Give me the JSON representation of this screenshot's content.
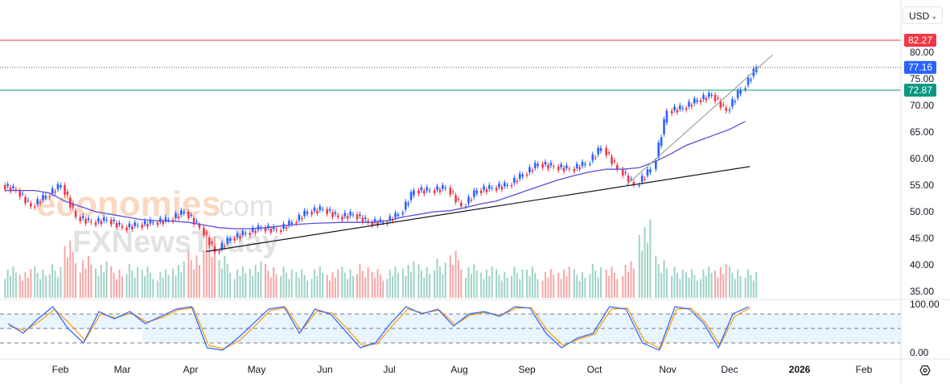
{
  "currency_selector": {
    "value": "USD",
    "icon": "chevron-down-icon"
  },
  "settings_icon": "gear-hexagon-icon",
  "watermark": [
    "economies.com",
    "FXNewsToday"
  ],
  "colors": {
    "up": "#2962ff",
    "down": "#f23645",
    "vol_up": "#9fd3c7",
    "vol_down": "#f5a6a6",
    "ma": "#5b4fd6",
    "stoch_k": "#2962ff",
    "stoch_d": "#ff9800",
    "resistance": "#f23645",
    "support": "#089981",
    "last": "#2962ff"
  },
  "chart_data": [
    {
      "type": "candlestick",
      "ylim": [
        35,
        82
      ],
      "y_ticks": [
        "80.00",
        "75.00",
        "70.00",
        "65.00",
        "60.00",
        "55.00",
        "50.00",
        "45.00",
        "40.00",
        "35.00"
      ],
      "x_ticks": [
        "Feb",
        "Mar",
        "Apr",
        "May",
        "Jun",
        "Jul",
        "Aug",
        "Sep",
        "Oct",
        "Nov",
        "Dec",
        "2026",
        "Feb"
      ],
      "dates": [
        "2025-01-06",
        "2025-01-13",
        "2025-01-20",
        "2025-01-27",
        "2025-02-03",
        "2025-02-10",
        "2025-02-17",
        "2025-02-24",
        "2025-03-03",
        "2025-03-10",
        "2025-03-17",
        "2025-03-24",
        "2025-03-31",
        "2025-04-07",
        "2025-04-14",
        "2025-04-21",
        "2025-04-28",
        "2025-05-05",
        "2025-05-12",
        "2025-05-19",
        "2025-05-26",
        "2025-06-02",
        "2025-06-09",
        "2025-06-16",
        "2025-06-23",
        "2025-06-30",
        "2025-07-07",
        "2025-07-14",
        "2025-07-21",
        "2025-07-28",
        "2025-08-04",
        "2025-08-11",
        "2025-08-18",
        "2025-08-25",
        "2025-09-01",
        "2025-09-08",
        "2025-09-15",
        "2025-09-22",
        "2025-09-29",
        "2025-10-06",
        "2025-10-13",
        "2025-10-20",
        "2025-10-27",
        "2025-11-03",
        "2025-11-10",
        "2025-11-17",
        "2025-11-24",
        "2025-12-01",
        "2025-12-08"
      ],
      "close": [
        54,
        51,
        53,
        55,
        49,
        48,
        48.5,
        47,
        47.5,
        48,
        48.5,
        50,
        47,
        42.5,
        45,
        46,
        47,
        46.5,
        48,
        50,
        50.5,
        49,
        49.5,
        48,
        48,
        49.5,
        54,
        54,
        54.5,
        51,
        54,
        54.5,
        55,
        57,
        59,
        58.5,
        58,
        59,
        62,
        58,
        55,
        58,
        69,
        69.5,
        71,
        72,
        69,
        73,
        77.16
      ],
      "volume": [
        12,
        11,
        12,
        13,
        22,
        16,
        14,
        12,
        13,
        12,
        11,
        14,
        18,
        26,
        16,
        12,
        14,
        13,
        12,
        11,
        12,
        11,
        12,
        13,
        11,
        12,
        14,
        13,
        15,
        18,
        13,
        12,
        11,
        12,
        12,
        11,
        12,
        11,
        13,
        12,
        14,
        30,
        16,
        12,
        11,
        12,
        13,
        12,
        11
      ],
      "volume_up": [
        true,
        false,
        true,
        true,
        false,
        false,
        true,
        false,
        true,
        true,
        true,
        true,
        false,
        false,
        true,
        true,
        true,
        false,
        true,
        true,
        true,
        false,
        true,
        false,
        false,
        true,
        true,
        true,
        true,
        false,
        true,
        true,
        true,
        true,
        true,
        false,
        false,
        true,
        true,
        false,
        false,
        true,
        true,
        true,
        true,
        true,
        false,
        true,
        true
      ],
      "ma": [
        54,
        54,
        54,
        53.5,
        52,
        51,
        50,
        49.5,
        49,
        48.5,
        48.3,
        48.2,
        48,
        47.5,
        47,
        46.8,
        46.8,
        47,
        47.3,
        47.6,
        47.8,
        47.9,
        48,
        48,
        48,
        48.3,
        49,
        49.5,
        50,
        50.2,
        50.8,
        51.5,
        52,
        53,
        54,
        55,
        56,
        56.8,
        57.5,
        58,
        58,
        58.3,
        59.5,
        61,
        62.5,
        63.5,
        64.5,
        65.5,
        67
      ],
      "levels": {
        "resistance": 82.27,
        "last": 77.16,
        "support": 72.87
      },
      "trendlines": [
        {
          "from": [
            "2025-04-08",
            42.5
          ],
          "to": [
            "2025-12-10",
            58.5
          ],
          "color": "#131722"
        },
        {
          "from": [
            "2025-10-14",
            54.8
          ],
          "to": [
            "2025-12-20",
            79.5
          ],
          "color": "#a0a0a0"
        }
      ]
    },
    {
      "type": "line",
      "indicator": "stochastic",
      "ylim": [
        0,
        100
      ],
      "y_ticks": [
        "100.00",
        "0.00"
      ],
      "bands": [
        80,
        50,
        20
      ],
      "k": [
        60,
        40,
        70,
        95,
        50,
        20,
        85,
        70,
        85,
        60,
        75,
        90,
        95,
        10,
        5,
        30,
        60,
        90,
        95,
        40,
        90,
        80,
        45,
        10,
        20,
        60,
        95,
        80,
        90,
        55,
        80,
        85,
        75,
        95,
        92,
        40,
        10,
        30,
        40,
        95,
        90,
        20,
        5,
        95,
        90,
        60,
        10,
        80,
        95
      ],
      "d": [
        55,
        45,
        65,
        90,
        60,
        25,
        80,
        72,
        82,
        63,
        73,
        88,
        93,
        15,
        8,
        25,
        55,
        87,
        93,
        45,
        85,
        82,
        50,
        15,
        18,
        55,
        90,
        82,
        88,
        58,
        78,
        83,
        77,
        92,
        93,
        45,
        15,
        28,
        38,
        90,
        92,
        25,
        8,
        90,
        92,
        62,
        15,
        75,
        93
      ]
    }
  ]
}
